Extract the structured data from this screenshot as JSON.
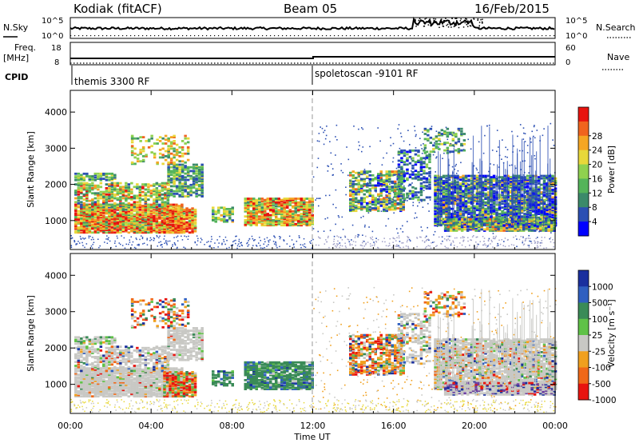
{
  "header": {
    "station": "Kodiak (fitACF)",
    "beam": "Beam 05",
    "date": "16/Feb/2015"
  },
  "top_panels": {
    "nsky_label": "N.Sky",
    "nsky_ticks": [
      "10^5",
      "10^0"
    ],
    "nsearch_label": "N.Search",
    "nsearch_ticks": [
      "10^5",
      "10^0"
    ],
    "freq_label": "Freq.",
    "freq_unit": "[MHz]",
    "freq_ticks": [
      "18",
      "8"
    ],
    "nave_label": "Nave",
    "nave_ticks": [
      "60",
      "0"
    ],
    "cpid_label": "CPID",
    "cpid_segments": [
      {
        "label": "themis 3300 RF",
        "start_hour": 0
      },
      {
        "label": "spoletoscan -9101 RF",
        "start_hour": 12
      }
    ]
  },
  "chart_data": [
    {
      "type": "heatmap",
      "name": "power",
      "ylabel": "Slant Range [km]",
      "y_ticks": [
        "1000",
        "2000",
        "3000",
        "4000"
      ],
      "ylim": [
        200,
        4600
      ],
      "x_range_hours": [
        0,
        24
      ],
      "colorbar": {
        "label": "Power [dB]",
        "ticks": [
          "4",
          "8",
          "12",
          "16",
          "20",
          "24",
          "28"
        ],
        "colors": [
          "#0000ff",
          "#2b4fb3",
          "#3b8a6a",
          "#54b45a",
          "#8fd14f",
          "#e8d83a",
          "#f5a623",
          "#f0641e",
          "#e8140f"
        ]
      }
    },
    {
      "type": "heatmap",
      "name": "velocity",
      "ylabel": "Slant Range [km]",
      "y_ticks": [
        "1000",
        "2000",
        "3000",
        "4000"
      ],
      "ylim": [
        200,
        4600
      ],
      "x_range_hours": [
        0,
        24
      ],
      "colorbar": {
        "label": "Velocity [m s⁻¹]",
        "ticks": [
          "1000",
          "500",
          "100",
          "25",
          "-25",
          "-100",
          "-500",
          "-1000"
        ],
        "colors": [
          "#1a2f9e",
          "#2f5fc0",
          "#3a8b57",
          "#5fc247",
          "#c8c8c4",
          "#f0a01e",
          "#f06818",
          "#e8140f"
        ]
      }
    }
  ],
  "x_axis": {
    "ticks": [
      "00:00",
      "04:00",
      "08:00",
      "12:00",
      "16:00",
      "20:00",
      "00:00"
    ],
    "label": "Time UT"
  }
}
